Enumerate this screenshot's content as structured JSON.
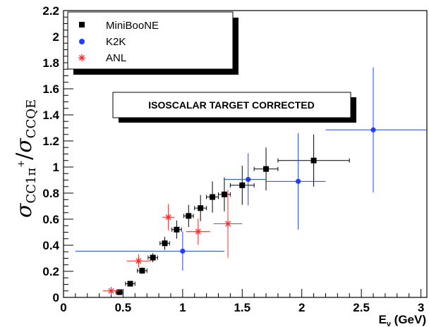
{
  "chart_data": {
    "type": "scatter",
    "title": "",
    "xlabel": "E",
    "xlabel_sub": "ν",
    "xlabel_unit": " (GeV)",
    "ylabel_main": "σ",
    "ylabel_num_sub": "CC1π",
    "ylabel_num_sup": "+",
    "ylabel_sep": "/",
    "ylabel_den_sub": "CCQE",
    "xlim": [
      0,
      3.05
    ],
    "ylim": [
      0,
      2.2
    ],
    "xticks": [
      "0",
      "0.5",
      "1",
      "1.5",
      "2",
      "2.5",
      "3"
    ],
    "xtick_values": [
      0,
      0.5,
      1,
      1.5,
      2,
      2.5,
      3
    ],
    "yticks": [
      "0",
      "0.2",
      "0.4",
      "0.6",
      "0.8",
      "1",
      "1.2",
      "1.4",
      "1.6",
      "1.8",
      "2",
      "2.2"
    ],
    "ytick_values": [
      0,
      0.2,
      0.4,
      0.6,
      0.8,
      1,
      1.2,
      1.4,
      1.6,
      1.8,
      2,
      2.2
    ],
    "annotation": "ISOSCALAR TARGET CORRECTED",
    "legend_position": "top-left",
    "series": [
      {
        "name": "MiniBooNE",
        "marker": "square",
        "color": "#000000",
        "points": [
          {
            "x": 0.47,
            "y": 0.04,
            "xerr": 0.03,
            "yerr": 0.01
          },
          {
            "x": 0.56,
            "y": 0.105,
            "xerr": 0.04,
            "yerr": 0.015
          },
          {
            "x": 0.66,
            "y": 0.205,
            "xerr": 0.04,
            "yerr": 0.025
          },
          {
            "x": 0.75,
            "y": 0.305,
            "xerr": 0.04,
            "yerr": 0.035
          },
          {
            "x": 0.85,
            "y": 0.415,
            "xerr": 0.04,
            "yerr": 0.05
          },
          {
            "x": 0.95,
            "y": 0.52,
            "xerr": 0.04,
            "yerr": 0.07
          },
          {
            "x": 1.05,
            "y": 0.625,
            "xerr": 0.04,
            "yerr": 0.085
          },
          {
            "x": 1.15,
            "y": 0.685,
            "xerr": 0.05,
            "yerr": 0.1
          },
          {
            "x": 1.25,
            "y": 0.77,
            "xerr": 0.05,
            "yerr": 0.12
          },
          {
            "x": 1.35,
            "y": 0.79,
            "xerr": 0.05,
            "yerr": 0.13
          },
          {
            "x": 1.5,
            "y": 0.86,
            "xerr": 0.1,
            "yerr": 0.15
          },
          {
            "x": 1.7,
            "y": 0.985,
            "xerr": 0.1,
            "yerr": 0.165
          },
          {
            "x": 2.1,
            "y": 1.05,
            "xerr": 0.3,
            "yerr": 0.2
          }
        ]
      },
      {
        "name": "K2K",
        "marker": "circle",
        "color": "#1f3fff",
        "points": [
          {
            "x": 1.0,
            "y": 0.355,
            "xerr_lo": 0.9,
            "xerr_hi": 0.35,
            "yerr": 0.15
          },
          {
            "x": 1.55,
            "y": 0.905,
            "xerr_lo": 0.2,
            "xerr_hi": 0.15,
            "yerr": 0.2
          },
          {
            "x": 1.97,
            "y": 0.89,
            "xerr_lo": 0.27,
            "xerr_hi": 0.23,
            "yerr": 0.37
          },
          {
            "x": 2.6,
            "y": 1.285,
            "xerr_lo": 0.4,
            "xerr_hi": 0.45,
            "yerr": 0.48
          }
        ]
      },
      {
        "name": "ANL",
        "marker": "star",
        "color": "#ff2a2a",
        "points": [
          {
            "x": 0.4,
            "y": 0.05,
            "xerr": 0.07,
            "yerr": 0.03
          },
          {
            "x": 0.63,
            "y": 0.28,
            "xerr": 0.1,
            "yerr": 0.05
          },
          {
            "x": 0.88,
            "y": 0.615,
            "xerr": 0.05,
            "yerr": 0.1
          },
          {
            "x": 1.13,
            "y": 0.505,
            "xerr": 0.1,
            "yerr": 0.1
          },
          {
            "x": 1.38,
            "y": 0.565,
            "xerr": 0.12,
            "yerr": 0.26
          }
        ]
      }
    ],
    "grid": false
  }
}
